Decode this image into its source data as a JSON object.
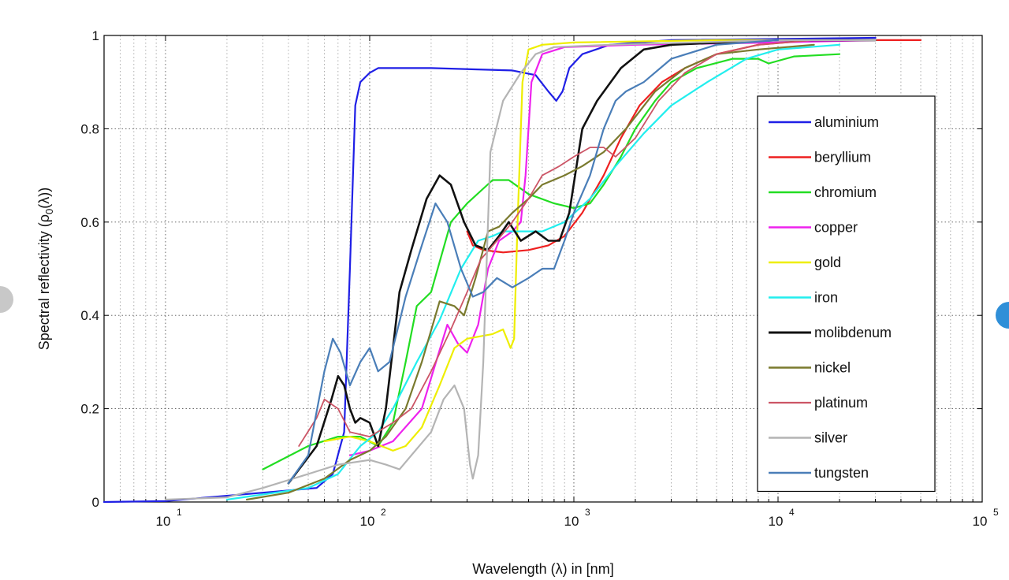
{
  "chart_data": {
    "type": "line",
    "title": "",
    "xlabel": "Wavelength (λ) in [nm]",
    "ylabel": "Spectral reflectivity (ρ",
    "ylabel_sub": "0",
    "ylabel_tail": "(λ))",
    "x_scale": "log",
    "xlim": [
      5,
      100000
    ],
    "ylim": [
      0,
      1
    ],
    "grid": true,
    "legend_position": "right",
    "x_ticks": [
      {
        "value": 10,
        "base": "10",
        "exp": "1"
      },
      {
        "value": 100,
        "base": "10",
        "exp": "2"
      },
      {
        "value": 1000,
        "base": "10",
        "exp": "3"
      },
      {
        "value": 10000,
        "base": "10",
        "exp": "4"
      },
      {
        "value": 100000,
        "base": "10",
        "exp": "5"
      }
    ],
    "y_ticks": [
      {
        "value": 0,
        "label": "0"
      },
      {
        "value": 0.2,
        "label": "0.2"
      },
      {
        "value": 0.4,
        "label": "0.4"
      },
      {
        "value": 0.6,
        "label": "0.6"
      },
      {
        "value": 0.8,
        "label": "0.8"
      },
      {
        "value": 1,
        "label": "1"
      }
    ],
    "series": [
      {
        "name": "aluminium",
        "color": "#1f1fe6",
        "width": 2.2,
        "points": [
          [
            5,
            0
          ],
          [
            10,
            0.002
          ],
          [
            30,
            0.02
          ],
          [
            55,
            0.03
          ],
          [
            66,
            0.06
          ],
          [
            75,
            0.15
          ],
          [
            80,
            0.5
          ],
          [
            85,
            0.85
          ],
          [
            90,
            0.9
          ],
          [
            100,
            0.92
          ],
          [
            110,
            0.93
          ],
          [
            200,
            0.93
          ],
          [
            500,
            0.925
          ],
          [
            650,
            0.915
          ],
          [
            750,
            0.88
          ],
          [
            820,
            0.86
          ],
          [
            880,
            0.88
          ],
          [
            950,
            0.93
          ],
          [
            1100,
            0.96
          ],
          [
            1500,
            0.98
          ],
          [
            3000,
            0.99
          ],
          [
            30000,
            0.995
          ]
        ]
      },
      {
        "name": "beryllium",
        "color": "#ee2020",
        "width": 2.2,
        "points": [
          [
            300,
            0.58
          ],
          [
            320,
            0.55
          ],
          [
            360,
            0.54
          ],
          [
            450,
            0.535
          ],
          [
            600,
            0.54
          ],
          [
            750,
            0.55
          ],
          [
            900,
            0.57
          ],
          [
            1100,
            0.62
          ],
          [
            1400,
            0.7
          ],
          [
            1700,
            0.78
          ],
          [
            2100,
            0.85
          ],
          [
            2700,
            0.9
          ],
          [
            3500,
            0.93
          ],
          [
            5000,
            0.96
          ],
          [
            8000,
            0.98
          ],
          [
            15000,
            0.99
          ],
          [
            30000,
            0.99
          ],
          [
            50000,
            0.99
          ]
        ]
      },
      {
        "name": "chromium",
        "color": "#22dd22",
        "width": 2.2,
        "points": [
          [
            30,
            0.07
          ],
          [
            50,
            0.12
          ],
          [
            70,
            0.14
          ],
          [
            90,
            0.14
          ],
          [
            110,
            0.12
          ],
          [
            130,
            0.17
          ],
          [
            150,
            0.3
          ],
          [
            170,
            0.42
          ],
          [
            200,
            0.45
          ],
          [
            250,
            0.6
          ],
          [
            300,
            0.64
          ],
          [
            400,
            0.69
          ],
          [
            480,
            0.69
          ],
          [
            600,
            0.66
          ],
          [
            800,
            0.64
          ],
          [
            1000,
            0.63
          ],
          [
            1200,
            0.64
          ],
          [
            1400,
            0.68
          ],
          [
            1700,
            0.74
          ],
          [
            2000,
            0.8
          ],
          [
            2500,
            0.86
          ],
          [
            3000,
            0.9
          ],
          [
            4000,
            0.93
          ],
          [
            6000,
            0.95
          ],
          [
            8000,
            0.95
          ],
          [
            9000,
            0.94
          ],
          [
            12000,
            0.955
          ],
          [
            20000,
            0.96
          ]
        ]
      },
      {
        "name": "copper",
        "color": "#ee22ee",
        "width": 2.2,
        "points": [
          [
            80,
            0.1
          ],
          [
            100,
            0.11
          ],
          [
            130,
            0.13
          ],
          [
            180,
            0.2
          ],
          [
            240,
            0.38
          ],
          [
            270,
            0.34
          ],
          [
            300,
            0.32
          ],
          [
            340,
            0.38
          ],
          [
            380,
            0.5
          ],
          [
            430,
            0.56
          ],
          [
            500,
            0.58
          ],
          [
            550,
            0.6
          ],
          [
            580,
            0.7
          ],
          [
            620,
            0.9
          ],
          [
            700,
            0.96
          ],
          [
            900,
            0.975
          ],
          [
            2000,
            0.98
          ],
          [
            10000,
            0.985
          ],
          [
            30000,
            0.99
          ]
        ]
      },
      {
        "name": "gold",
        "color": "#eeee00",
        "width": 2.2,
        "points": [
          [
            60,
            0.13
          ],
          [
            80,
            0.14
          ],
          [
            100,
            0.13
          ],
          [
            130,
            0.11
          ],
          [
            150,
            0.12
          ],
          [
            180,
            0.16
          ],
          [
            220,
            0.25
          ],
          [
            260,
            0.33
          ],
          [
            300,
            0.35
          ],
          [
            400,
            0.36
          ],
          [
            450,
            0.37
          ],
          [
            490,
            0.33
          ],
          [
            510,
            0.35
          ],
          [
            530,
            0.6
          ],
          [
            560,
            0.9
          ],
          [
            600,
            0.97
          ],
          [
            700,
            0.98
          ],
          [
            1000,
            0.985
          ],
          [
            5000,
            0.99
          ],
          [
            30000,
            0.99
          ]
        ]
      },
      {
        "name": "iron",
        "color": "#22eeee",
        "width": 2.2,
        "points": [
          [
            20,
            0.005
          ],
          [
            50,
            0.03
          ],
          [
            70,
            0.06
          ],
          [
            90,
            0.12
          ],
          [
            110,
            0.15
          ],
          [
            130,
            0.2
          ],
          [
            170,
            0.3
          ],
          [
            220,
            0.39
          ],
          [
            280,
            0.5
          ],
          [
            340,
            0.56
          ],
          [
            400,
            0.57
          ],
          [
            450,
            0.58
          ],
          [
            550,
            0.58
          ],
          [
            700,
            0.58
          ],
          [
            900,
            0.6
          ],
          [
            1200,
            0.65
          ],
          [
            1600,
            0.72
          ],
          [
            2200,
            0.79
          ],
          [
            3000,
            0.85
          ],
          [
            4500,
            0.9
          ],
          [
            7000,
            0.95
          ],
          [
            10000,
            0.97
          ],
          [
            20000,
            0.98
          ]
        ]
      },
      {
        "name": "molibdenum",
        "color": "#111111",
        "width": 2.6,
        "points": [
          [
            40,
            0.04
          ],
          [
            55,
            0.12
          ],
          [
            65,
            0.22
          ],
          [
            70,
            0.27
          ],
          [
            75,
            0.25
          ],
          [
            80,
            0.2
          ],
          [
            85,
            0.17
          ],
          [
            90,
            0.18
          ],
          [
            100,
            0.17
          ],
          [
            110,
            0.12
          ],
          [
            120,
            0.2
          ],
          [
            140,
            0.45
          ],
          [
            160,
            0.54
          ],
          [
            190,
            0.65
          ],
          [
            220,
            0.7
          ],
          [
            250,
            0.68
          ],
          [
            290,
            0.6
          ],
          [
            330,
            0.55
          ],
          [
            380,
            0.54
          ],
          [
            430,
            0.57
          ],
          [
            480,
            0.6
          ],
          [
            550,
            0.56
          ],
          [
            650,
            0.58
          ],
          [
            750,
            0.56
          ],
          [
            850,
            0.56
          ],
          [
            950,
            0.62
          ],
          [
            1100,
            0.8
          ],
          [
            1300,
            0.86
          ],
          [
            1700,
            0.93
          ],
          [
            2200,
            0.97
          ],
          [
            3000,
            0.98
          ],
          [
            10000,
            0.99
          ],
          [
            30000,
            0.99
          ]
        ]
      },
      {
        "name": "nickel",
        "color": "#7a7a2e",
        "width": 2.2,
        "points": [
          [
            25,
            0.005
          ],
          [
            40,
            0.02
          ],
          [
            60,
            0.05
          ],
          [
            80,
            0.09
          ],
          [
            100,
            0.11
          ],
          [
            120,
            0.14
          ],
          [
            150,
            0.2
          ],
          [
            180,
            0.3
          ],
          [
            220,
            0.43
          ],
          [
            260,
            0.42
          ],
          [
            290,
            0.4
          ],
          [
            330,
            0.48
          ],
          [
            380,
            0.58
          ],
          [
            430,
            0.59
          ],
          [
            500,
            0.62
          ],
          [
            600,
            0.65
          ],
          [
            700,
            0.68
          ],
          [
            900,
            0.7
          ],
          [
            1100,
            0.72
          ],
          [
            1400,
            0.75
          ],
          [
            1800,
            0.8
          ],
          [
            2500,
            0.88
          ],
          [
            3500,
            0.93
          ],
          [
            5000,
            0.96
          ],
          [
            8000,
            0.97
          ],
          [
            15000,
            0.98
          ]
        ]
      },
      {
        "name": "platinum",
        "color": "#cc5566",
        "width": 1.8,
        "points": [
          [
            45,
            0.12
          ],
          [
            55,
            0.18
          ],
          [
            60,
            0.22
          ],
          [
            70,
            0.2
          ],
          [
            80,
            0.15
          ],
          [
            100,
            0.14
          ],
          [
            130,
            0.17
          ],
          [
            160,
            0.2
          ],
          [
            200,
            0.28
          ],
          [
            250,
            0.37
          ],
          [
            300,
            0.45
          ],
          [
            350,
            0.52
          ],
          [
            420,
            0.56
          ],
          [
            500,
            0.6
          ],
          [
            600,
            0.65
          ],
          [
            700,
            0.7
          ],
          [
            850,
            0.72
          ],
          [
            1000,
            0.74
          ],
          [
            1200,
            0.76
          ],
          [
            1400,
            0.76
          ],
          [
            1600,
            0.74
          ],
          [
            2000,
            0.78
          ],
          [
            2600,
            0.86
          ],
          [
            3500,
            0.92
          ],
          [
            5000,
            0.96
          ],
          [
            8000,
            0.98
          ],
          [
            15000,
            0.99
          ]
        ]
      },
      {
        "name": "silver",
        "color": "#b4b4b4",
        "width": 2.2,
        "points": [
          [
            10,
            0.005
          ],
          [
            20,
            0.01
          ],
          [
            30,
            0.03
          ],
          [
            50,
            0.06
          ],
          [
            70,
            0.08
          ],
          [
            100,
            0.09
          ],
          [
            120,
            0.08
          ],
          [
            140,
            0.07
          ],
          [
            160,
            0.1
          ],
          [
            200,
            0.15
          ],
          [
            230,
            0.22
          ],
          [
            260,
            0.25
          ],
          [
            290,
            0.2
          ],
          [
            310,
            0.08
          ],
          [
            320,
            0.05
          ],
          [
            340,
            0.1
          ],
          [
            360,
            0.3
          ],
          [
            390,
            0.75
          ],
          [
            450,
            0.86
          ],
          [
            550,
            0.92
          ],
          [
            650,
            0.96
          ],
          [
            800,
            0.975
          ],
          [
            1500,
            0.98
          ],
          [
            10000,
            0.99
          ],
          [
            30000,
            0.99
          ]
        ]
      },
      {
        "name": "tungsten",
        "color": "#4a7eb8",
        "width": 2.2,
        "points": [
          [
            40,
            0.04
          ],
          [
            50,
            0.1
          ],
          [
            60,
            0.28
          ],
          [
            66,
            0.35
          ],
          [
            72,
            0.32
          ],
          [
            80,
            0.25
          ],
          [
            90,
            0.3
          ],
          [
            100,
            0.33
          ],
          [
            110,
            0.28
          ],
          [
            125,
            0.3
          ],
          [
            150,
            0.44
          ],
          [
            180,
            0.55
          ],
          [
            210,
            0.64
          ],
          [
            240,
            0.6
          ],
          [
            280,
            0.5
          ],
          [
            320,
            0.44
          ],
          [
            360,
            0.45
          ],
          [
            420,
            0.48
          ],
          [
            500,
            0.46
          ],
          [
            600,
            0.48
          ],
          [
            700,
            0.5
          ],
          [
            800,
            0.5
          ],
          [
            900,
            0.56
          ],
          [
            1000,
            0.62
          ],
          [
            1200,
            0.7
          ],
          [
            1400,
            0.8
          ],
          [
            1600,
            0.86
          ],
          [
            1800,
            0.88
          ],
          [
            2200,
            0.9
          ],
          [
            3000,
            0.95
          ],
          [
            5000,
            0.98
          ],
          [
            10000,
            0.99
          ]
        ]
      }
    ]
  },
  "decor": {
    "left_circle_color": "#c8c8c8",
    "right_circle_color": "#2f8fd8"
  }
}
